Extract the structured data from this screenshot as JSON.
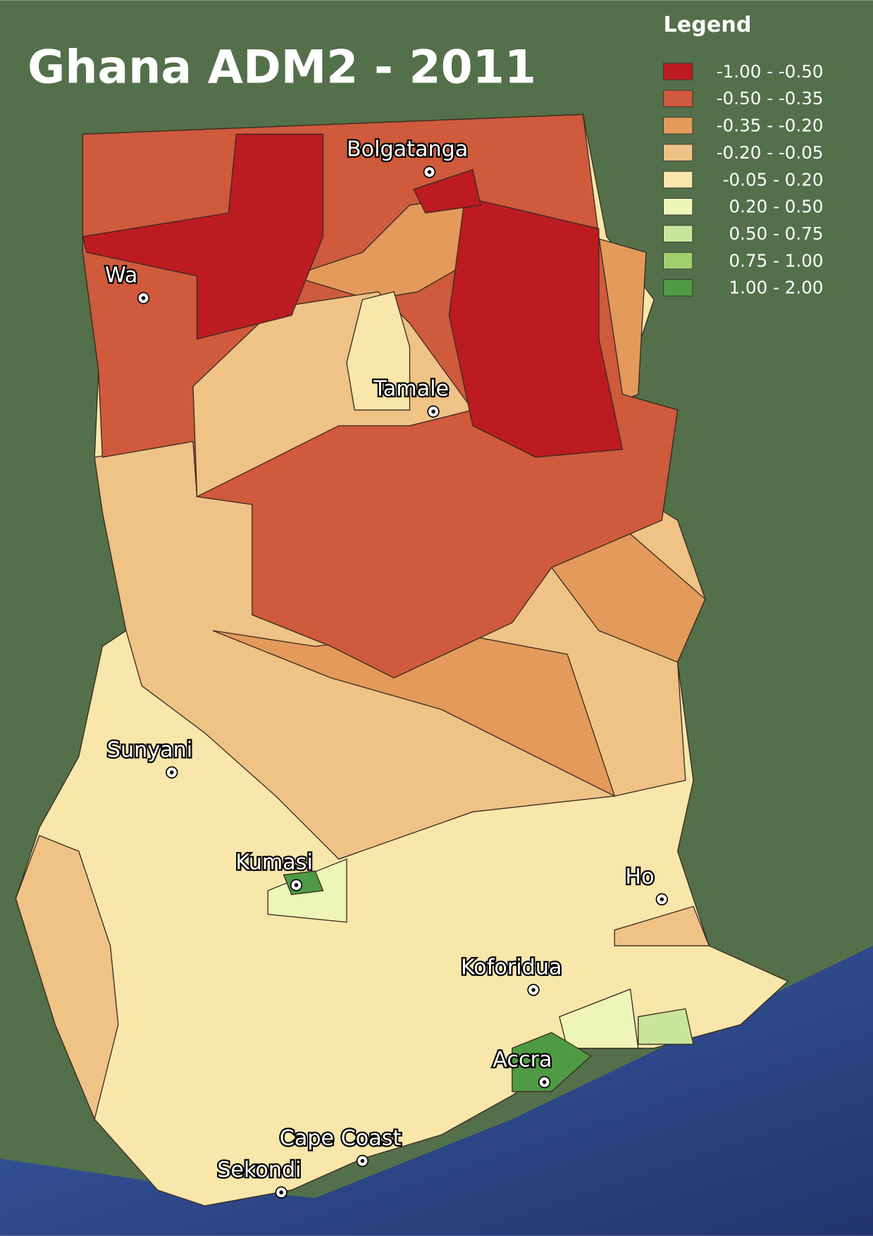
{
  "title": "Ghana ADM2 - 2011",
  "legend": {
    "title": "Legend",
    "items": [
      {
        "label": "-1.00 -  -0.50",
        "color": "#bd1b22"
      },
      {
        "label": "-0.50 -  -0.35",
        "color": "#cf5a3c"
      },
      {
        "label": "-0.35 -  -0.20",
        "color": "#e49a5a"
      },
      {
        "label": "-0.20 -  -0.05",
        "color": "#efc286"
      },
      {
        "label": "-0.05 -   0.20",
        "color": "#f8e6aa"
      },
      {
        "label": "0.20 -   0.50",
        "color": "#eef5b8"
      },
      {
        "label": "0.50 -   0.75",
        "color": "#c9e59a"
      },
      {
        "label": "0.75 -   1.00",
        "color": "#9fd06e"
      },
      {
        "label": "1.00 -   2.00",
        "color": "#4f9a44"
      }
    ]
  },
  "cities": [
    "Bolgatanga",
    "Wa",
    "Tamale",
    "Sunyani",
    "Kumasi",
    "Ho",
    "Koforidua",
    "Accra",
    "Cape Coast",
    "Sekondi"
  ]
}
